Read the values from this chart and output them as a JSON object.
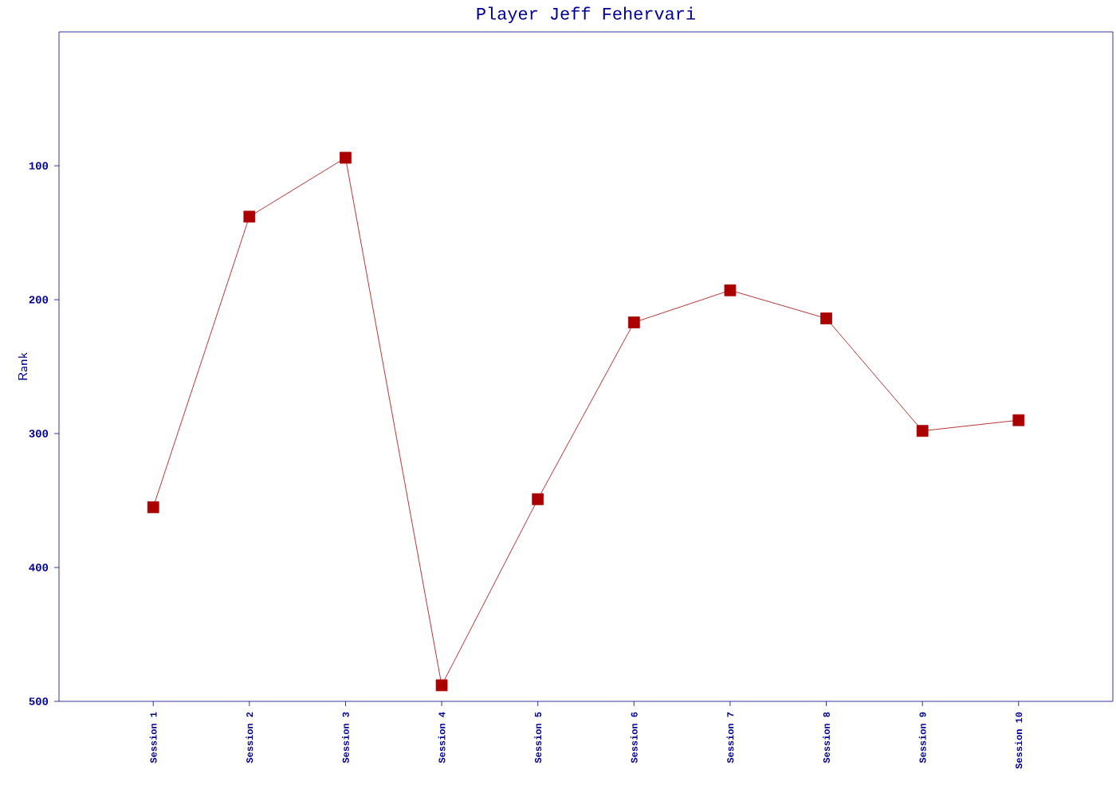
{
  "chart_data": {
    "type": "line",
    "title": "Player Jeff Fehervari",
    "ylabel": "Rank",
    "categories": [
      "Session 1",
      "Session 2",
      "Session 3",
      "Session 4",
      "Session 5",
      "Session 6",
      "Session 7",
      "Session 8",
      "Session 9",
      "Session 10"
    ],
    "series": [
      {
        "color": "#aa0000",
        "values": [
          355,
          138,
          94,
          488,
          349,
          217,
          193,
          214,
          298,
          290
        ]
      }
    ],
    "ylim": [
      500,
      0
    ],
    "yticks": [
      100,
      200,
      300,
      400,
      500
    ],
    "marker": "square",
    "line_style": "solid",
    "grid": false,
    "legend": false
  }
}
